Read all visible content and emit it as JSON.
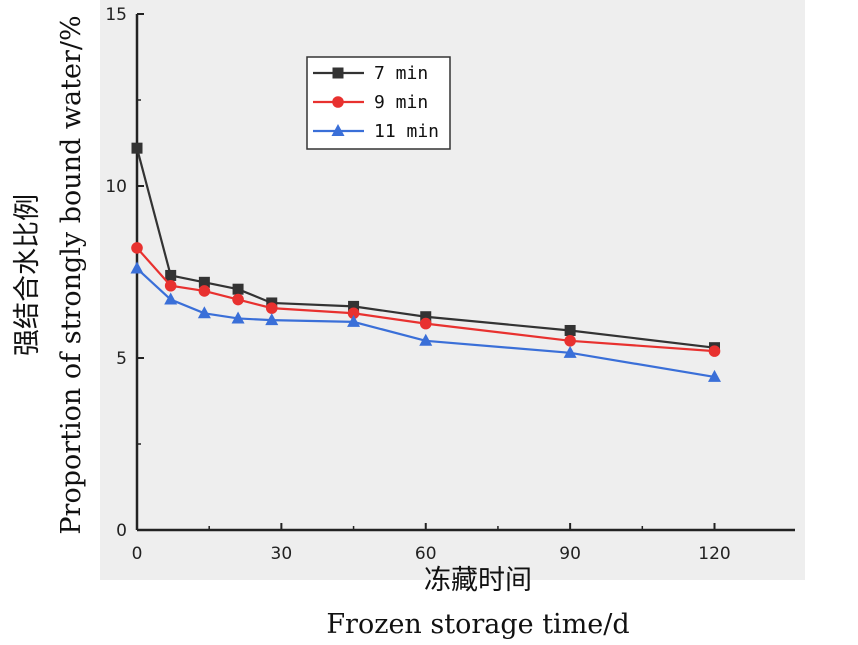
{
  "chart_data": {
    "type": "line",
    "xlabel_cn": "冻藏时间",
    "xlabel_en": "Frozen storage time/d",
    "ylabel_cn": "强结合水比例",
    "ylabel_en": "Proportion of strongly bound water/%",
    "xlim": [
      0,
      135
    ],
    "ylim": [
      0,
      15
    ],
    "xticks": [
      0,
      30,
      60,
      90,
      120
    ],
    "yticks": [
      0,
      5,
      10,
      15
    ],
    "legend_position": "top-center",
    "grid": false,
    "x": [
      0,
      7,
      14,
      21,
      28,
      45,
      60,
      90,
      120
    ],
    "series": [
      {
        "name": "7 min",
        "color": "#333333",
        "marker": "square",
        "values": [
          11.1,
          7.4,
          7.2,
          7.0,
          6.6,
          6.5,
          6.2,
          5.8,
          5.3
        ]
      },
      {
        "name": "9 min",
        "color": "#e8312f",
        "marker": "circle",
        "values": [
          8.2,
          7.1,
          6.95,
          6.7,
          6.45,
          6.3,
          6.0,
          5.5,
          5.2
        ]
      },
      {
        "name": "11 min",
        "color": "#3a6fd8",
        "marker": "triangle",
        "values": [
          7.6,
          6.7,
          6.3,
          6.15,
          6.1,
          6.05,
          5.5,
          5.15,
          4.45
        ]
      }
    ]
  }
}
